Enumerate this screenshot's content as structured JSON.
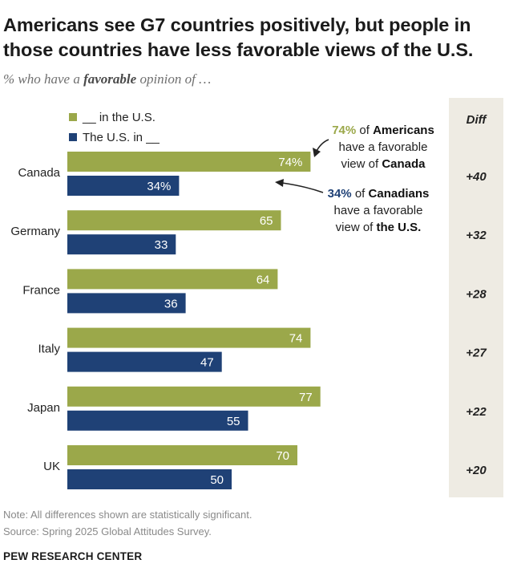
{
  "title": "Americans see G7 countries positively, but people in those countries have less favorable views of the U.S.",
  "subtitle": {
    "before": "% who have a ",
    "emphasis": "favorable",
    "after": " opinion of …"
  },
  "colors": {
    "green": "#9ba84a",
    "blue": "#1f4176",
    "diff_panel": "#eeebe3"
  },
  "chart_data": {
    "type": "bar",
    "orientation": "horizontal",
    "categories": [
      "Canada",
      "Germany",
      "France",
      "Italy",
      "Japan",
      "UK"
    ],
    "series": [
      {
        "name": "__ in the U.S.",
        "labels": [
          "74%",
          "65",
          "64",
          "74",
          "77",
          "70"
        ],
        "values": [
          74,
          65,
          64,
          74,
          77,
          70
        ],
        "color": "#9ba84a"
      },
      {
        "name": "The U.S. in __",
        "labels": [
          "34%",
          "33",
          "36",
          "47",
          "55",
          "50"
        ],
        "values": [
          34,
          33,
          36,
          47,
          55,
          50
        ],
        "color": "#1f4176"
      }
    ],
    "diff_header": "Diff",
    "diff": [
      "+40",
      "+32",
      "+28",
      "+27",
      "+22",
      "+20"
    ],
    "xlim": [
      0,
      100
    ],
    "annotations": {
      "americans": {
        "line1": [
          {
            "text": "74%",
            "style": "green"
          },
          {
            "text": " of ",
            "style": "normal"
          },
          {
            "text": "Americans",
            "style": "bold"
          }
        ],
        "line2": [
          {
            "text": "have a favorable",
            "style": "normal"
          }
        ],
        "line3": [
          {
            "text": "view of ",
            "style": "normal"
          },
          {
            "text": "Canada",
            "style": "bold"
          }
        ]
      },
      "canadians": {
        "line1": [
          {
            "text": "34%",
            "style": "blue"
          },
          {
            "text": " of ",
            "style": "normal"
          },
          {
            "text": "Canadians",
            "style": "bold"
          }
        ],
        "line2": [
          {
            "text": "have a favorable",
            "style": "normal"
          }
        ],
        "line3": [
          {
            "text": "view of ",
            "style": "normal"
          },
          {
            "text": "the U.S.",
            "style": "bold"
          }
        ]
      }
    }
  },
  "note": "Note: All differences shown are statistically significant.",
  "source": "Source: Spring 2025 Global Attitudes Survey.",
  "brand": "PEW RESEARCH CENTER"
}
